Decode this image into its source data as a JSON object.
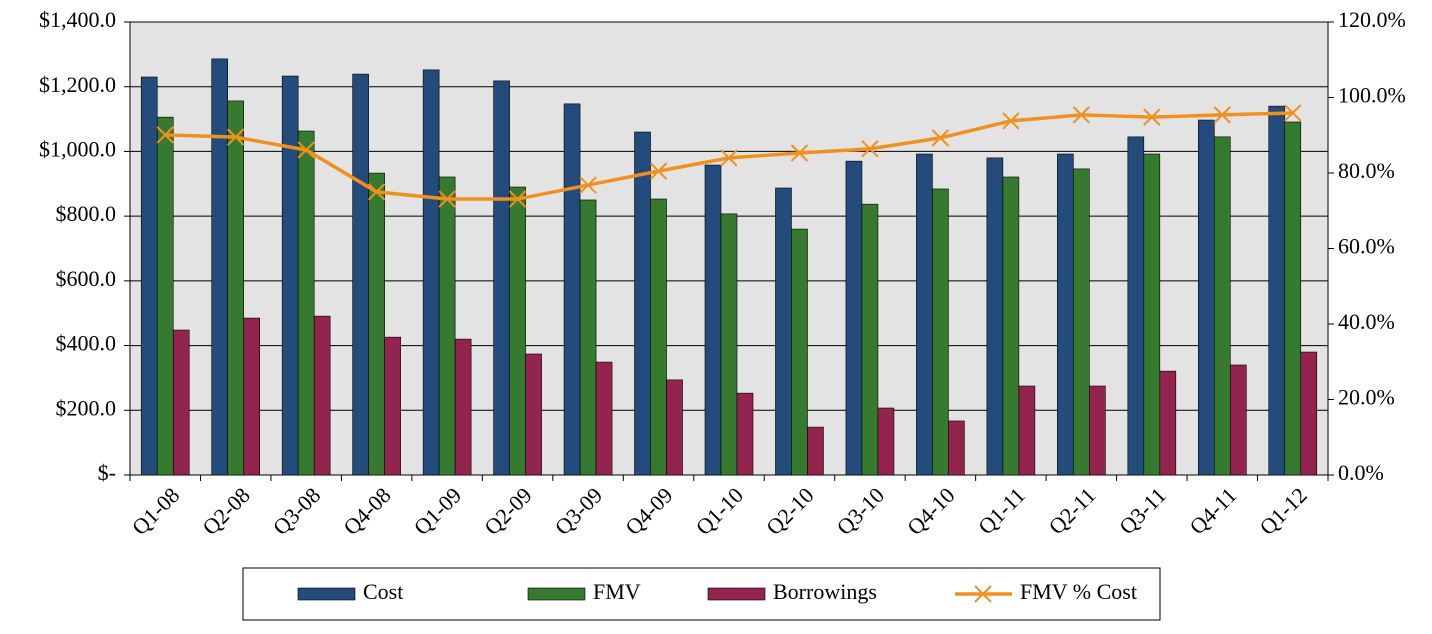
{
  "chart_data": {
    "type": "bar",
    "categories": [
      "Q1-08",
      "Q2-08",
      "Q3-08",
      "Q4-08",
      "Q1-09",
      "Q2-09",
      "Q3-09",
      "Q4-09",
      "Q1-10",
      "Q2-10",
      "Q3-10",
      "Q4-10",
      "Q1-11",
      "Q2-11",
      "Q3-11",
      "Q4-11",
      "Q1-12"
    ],
    "series": [
      {
        "name": "Cost",
        "type": "bar",
        "color": "#234b7c",
        "values": [
          1230,
          1286,
          1233,
          1239,
          1252,
          1218,
          1147,
          1060,
          958,
          887,
          970,
          992,
          980,
          992,
          1045,
          1097,
          1140
        ]
      },
      {
        "name": "FMV",
        "type": "bar",
        "color": "#357a2e",
        "values": [
          1106,
          1156,
          1063,
          933,
          921,
          890,
          850,
          853,
          807,
          760,
          837,
          884,
          921,
          946,
          992,
          1045,
          1091
        ]
      },
      {
        "name": "Borrowings",
        "type": "bar",
        "color": "#93244f",
        "values": [
          448,
          485,
          491,
          426,
          420,
          374,
          349,
          294,
          253,
          148,
          207,
          167,
          275,
          275,
          321,
          340,
          380
        ]
      },
      {
        "name": "FMV % Cost",
        "type": "line",
        "axis": "y2",
        "color": "#f0901e",
        "values": [
          90.1,
          89.5,
          86.1,
          75.0,
          73.1,
          73.1,
          76.8,
          80.5,
          84.0,
          85.3,
          86.4,
          89.3,
          93.8,
          95.4,
          94.8,
          95.4,
          95.9
        ]
      }
    ],
    "ylim": [
      0,
      1400
    ],
    "yticks": [
      {
        "value": 0,
        "label": "$-"
      },
      {
        "value": 200,
        "label": "$200.0"
      },
      {
        "value": 400,
        "label": "$400.0"
      },
      {
        "value": 600,
        "label": "$600.0"
      },
      {
        "value": 800,
        "label": "$800.0"
      },
      {
        "value": 1000,
        "label": "$1,000.0"
      },
      {
        "value": 1200,
        "label": "$1,200.0"
      },
      {
        "value": 1400,
        "label": "$1,400.0"
      }
    ],
    "y2lim": [
      0,
      120
    ],
    "y2ticks": [
      {
        "value": 0,
        "label": "0.0%"
      },
      {
        "value": 20,
        "label": "20.0%"
      },
      {
        "value": 40,
        "label": "40.0%"
      },
      {
        "value": 60,
        "label": "60.0%"
      },
      {
        "value": 80,
        "label": "80.0%"
      },
      {
        "value": 100,
        "label": "100.0%"
      },
      {
        "value": 120,
        "label": "120.0%"
      }
    ],
    "grid": true,
    "legend": "bottom"
  }
}
